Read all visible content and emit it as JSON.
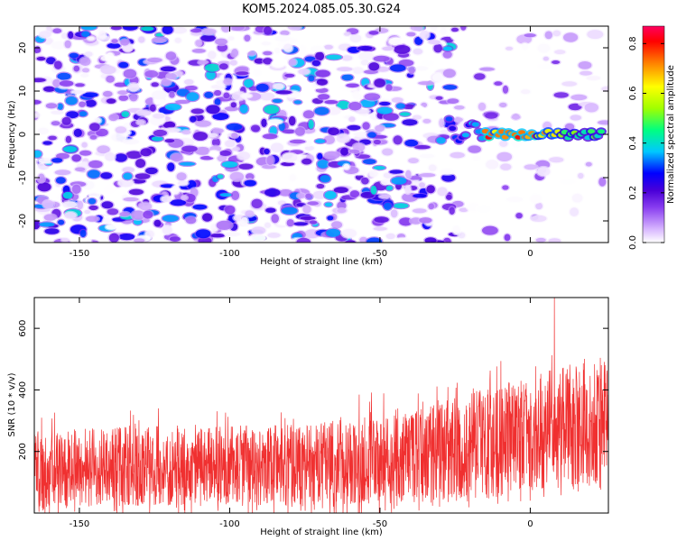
{
  "figure": {
    "title": "KOM5.2024.085.05.30.G24"
  },
  "chart_data": [
    {
      "type": "heatmap",
      "xlabel": "Height of straight line (km)",
      "ylabel": "Frequency (Hz)",
      "xlim": [
        -165,
        26
      ],
      "ylim": [
        -25,
        25
      ],
      "xticks": [
        -150,
        -100,
        -50,
        0
      ],
      "yticks": [
        -20,
        -10,
        0,
        10,
        20
      ],
      "colorbar": {
        "label": "Normalized spectral amplitude",
        "range": [
          0,
          0.87
        ],
        "ticks": [
          0.0,
          0.2,
          0.4,
          0.6,
          0.8
        ],
        "colormap": [
          "#ffffff",
          "#d9b8ff",
          "#8a3ff0",
          "#4a00d8",
          "#0000ff",
          "#00c8ff",
          "#00ff80",
          "#a0ff00",
          "#ffff00",
          "#ff8000",
          "#ff0000",
          "#ff0060"
        ]
      },
      "features": {
        "ridge": {
          "x_range": [
            -27,
            24
          ],
          "frequency": 0,
          "peak_amplitude": 0.85,
          "peak_x": -7
        },
        "background_amplitude": [
          0.0,
          0.4
        ]
      }
    },
    {
      "type": "line",
      "xlabel": "Height of straight line (km)",
      "ylabel": "SNR (10 * v/v)",
      "xlim": [
        -165,
        26
      ],
      "ylim": [
        0,
        700
      ],
      "xticks": [
        -150,
        -100,
        -50,
        0
      ],
      "yticks": [
        200,
        400,
        600
      ],
      "series": [
        {
          "color": "#f03030",
          "trend": [
            {
              "x": -165,
              "low": 20,
              "high": 260
            },
            {
              "x": -120,
              "low": 30,
              "high": 280
            },
            {
              "x": -80,
              "low": 30,
              "high": 280
            },
            {
              "x": -40,
              "low": 40,
              "high": 320
            },
            {
              "x": -15,
              "low": 60,
              "high": 400
            },
            {
              "x": 5,
              "low": 80,
              "high": 450
            },
            {
              "x": 26,
              "low": 120,
              "high": 520
            }
          ],
          "max_value": 700,
          "max_at_x": 8
        }
      ]
    }
  ]
}
